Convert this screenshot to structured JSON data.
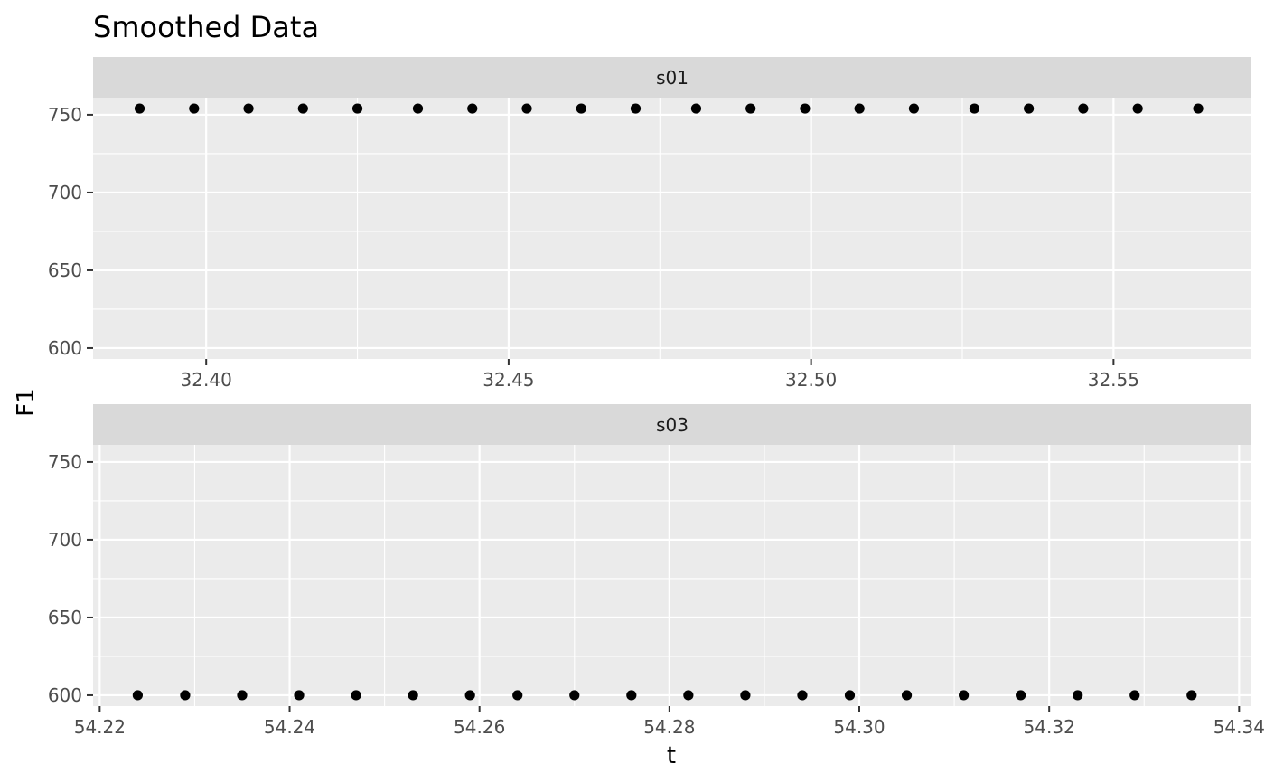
{
  "chart_data": {
    "type": "scatter",
    "title": "Smoothed Data",
    "xlabel": "t",
    "ylabel": "F1",
    "grid": true,
    "legend": "none",
    "colors": {
      "panel_bg": "#ebebeb",
      "strip_bg": "#d9d9d9",
      "grid": "#ffffff",
      "point": "#000000",
      "tick_label": "#4d4d4d"
    },
    "y_ticks": [
      600,
      650,
      700,
      750
    ],
    "y_tick_labels": [
      "600",
      "650",
      "700",
      "750"
    ],
    "ylim": [
      593,
      761
    ],
    "panels": [
      {
        "strip": "s01",
        "xlim": [
          32.3813,
          32.5728
        ],
        "x_ticks": [
          32.4,
          32.45,
          32.5,
          32.55
        ],
        "x_tick_labels": [
          "32.40",
          "32.45",
          "32.50",
          "32.55"
        ],
        "x_minor": [
          32.425,
          32.475,
          32.525
        ],
        "x": [
          32.389,
          32.398,
          32.407,
          32.416,
          32.425,
          32.435,
          32.444,
          32.453,
          32.462,
          32.471,
          32.481,
          32.49,
          32.499,
          32.508,
          32.517,
          32.527,
          32.536,
          32.545,
          32.554,
          32.564
        ],
        "y": [
          754,
          754,
          754,
          754,
          754,
          754,
          754,
          754,
          754,
          754,
          754,
          754,
          754,
          754,
          754,
          754,
          754,
          754,
          754,
          754
        ]
      },
      {
        "strip": "s03",
        "xlim": [
          54.2193,
          54.3413
        ],
        "x_ticks": [
          54.22,
          54.24,
          54.26,
          54.28,
          54.3,
          54.32,
          54.34
        ],
        "x_tick_labels": [
          "54.22",
          "54.24",
          "54.26",
          "54.28",
          "54.30",
          "54.32",
          "54.34"
        ],
        "x_minor": [
          54.23,
          54.25,
          54.27,
          54.29,
          54.31,
          54.33
        ],
        "x": [
          54.224,
          54.229,
          54.235,
          54.241,
          54.247,
          54.253,
          54.259,
          54.264,
          54.27,
          54.276,
          54.282,
          54.288,
          54.294,
          54.299,
          54.305,
          54.311,
          54.317,
          54.323,
          54.329,
          54.335
        ],
        "y": [
          600,
          600,
          600,
          600,
          600,
          600,
          600,
          600,
          600,
          600,
          600,
          600,
          600,
          600,
          600,
          600,
          600,
          600,
          600,
          600
        ]
      }
    ]
  }
}
